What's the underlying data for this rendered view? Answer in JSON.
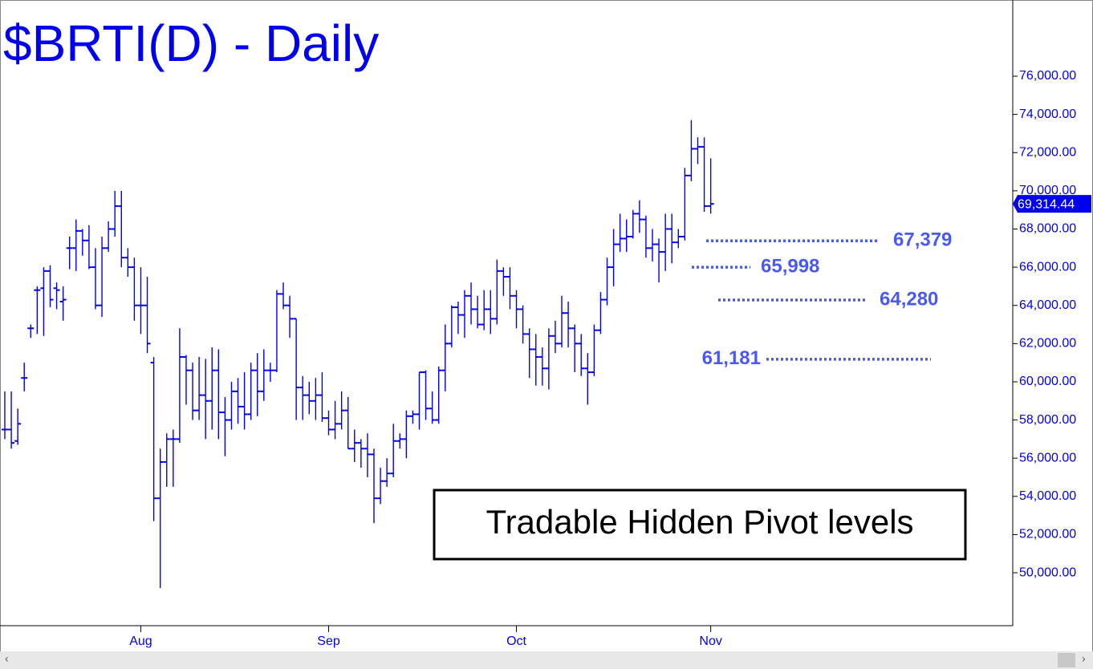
{
  "chart_data": {
    "type": "ohlc",
    "title": "$BRTI(D) - Daily",
    "annotation": "Tradable Hidden Pivot levels",
    "color": "#0000ee",
    "categories": [
      null,
      null,
      null,
      null,
      null,
      null,
      null,
      null,
      null,
      null,
      null,
      null,
      null,
      null,
      null,
      null,
      null,
      null,
      null,
      null,
      null,
      "Aug",
      null,
      null,
      null,
      null,
      null,
      null,
      null,
      null,
      null,
      null,
      null,
      null,
      null,
      null,
      null,
      null,
      null,
      null,
      null,
      null,
      null,
      null,
      null,
      null,
      null,
      null,
      null,
      null,
      "Sep",
      null,
      null,
      null,
      null,
      null,
      null,
      null,
      null,
      null,
      null,
      null,
      null,
      null,
      null,
      null,
      null,
      null,
      null,
      null,
      null,
      null,
      null,
      null,
      null,
      null,
      null,
      null,
      null,
      "Oct",
      null,
      null,
      null,
      null,
      null,
      null,
      null,
      null,
      null,
      null,
      null,
      null,
      null,
      null,
      null,
      null,
      null,
      null,
      null,
      null,
      null,
      null,
      null,
      null,
      null,
      null,
      null,
      null,
      null,
      "Nov"
    ],
    "open": [
      57500,
      57500,
      56900,
      60200,
      62800,
      64800,
      64900,
      65800,
      64900,
      64200,
      67000,
      67000,
      67900,
      67400,
      66000,
      64000,
      67000,
      68000,
      69200,
      66500,
      66000,
      64000,
      64000,
      61000,
      53900,
      55800,
      57000,
      57000,
      61300,
      60600,
      58500,
      59300,
      59000,
      60600,
      58400,
      58000,
      59500,
      58700,
      58300,
      60600,
      59500,
      60600,
      60600,
      64600,
      64000,
      63300,
      59700,
      59300,
      59000,
      59300,
      58100,
      57500,
      57800,
      58500,
      56500,
      56800,
      56500,
      56200,
      53900,
      54800,
      55200,
      56900,
      57000,
      58200,
      58300,
      60500,
      58600,
      58000,
      60600,
      62000,
      63900,
      63500,
      64500,
      63800,
      63000,
      63800,
      63300,
      65800,
      65500,
      64500,
      63800,
      62500,
      61700,
      61300,
      60700,
      62400,
      62000,
      63600,
      62800,
      62000,
      60700,
      60500,
      62700,
      64300,
      66000,
      67200,
      67500,
      67600,
      68800,
      68500,
      67000,
      67200,
      66800,
      68000,
      67300,
      67600,
      70800,
      72200,
      72300,
      69200
    ],
    "high": [
      59500,
      59500,
      58600,
      61000,
      63000,
      65000,
      66000,
      66100,
      65200,
      65000,
      67600,
      68500,
      68000,
      68200,
      67000,
      67600,
      68400,
      70000,
      70000,
      67000,
      66500,
      66000,
      65500,
      61300,
      56500,
      57300,
      57500,
      62800,
      61400,
      61000,
      61300,
      61200,
      61800,
      61700,
      59200,
      60000,
      60200,
      60500,
      61000,
      61500,
      61700,
      61000,
      64800,
      65200,
      64500,
      63300,
      60300,
      60000,
      60200,
      60500,
      58500,
      59000,
      59500,
      59200,
      57500,
      57000,
      57300,
      56500,
      55500,
      56000,
      57800,
      57300,
      58500,
      58500,
      60500,
      60600,
      59500,
      60800,
      63000,
      64000,
      64200,
      64800,
      65200,
      64500,
      64800,
      64800,
      66400,
      66000,
      66000,
      64800,
      64000,
      62800,
      62500,
      61800,
      62800,
      63200,
      64500,
      64200,
      63000,
      62500,
      61500,
      63000,
      64700,
      66500,
      68000,
      68800,
      68500,
      69000,
      69500,
      68700,
      68000,
      67500,
      68800,
      68800,
      68000,
      71200,
      73700,
      72800,
      72800,
      71700
    ],
    "low": [
      57000,
      56500,
      56700,
      59500,
      62300,
      62500,
      62400,
      63900,
      63800,
      63200,
      65900,
      65800,
      66600,
      65900,
      63800,
      63400,
      66800,
      67600,
      66000,
      65500,
      63200,
      62500,
      61500,
      52700,
      49200,
      54500,
      54500,
      56800,
      58800,
      58000,
      58000,
      57000,
      57500,
      57000,
      56100,
      57500,
      57800,
      57500,
      58000,
      58200,
      59000,
      60000,
      60500,
      63800,
      62300,
      58000,
      58000,
      58300,
      58000,
      57900,
      57200,
      57000,
      57500,
      56500,
      55800,
      55500,
      55000,
      52600,
      53600,
      54500,
      55000,
      56500,
      56000,
      57800,
      57500,
      58000,
      57800,
      57800,
      59500,
      61800,
      62500,
      62300,
      63000,
      62800,
      62700,
      62500,
      63000,
      64500,
      63800,
      62800,
      62000,
      60200,
      59800,
      59800,
      59600,
      61500,
      61800,
      61800,
      60500,
      60300,
      58800,
      60300,
      62500,
      64000,
      65000,
      66800,
      66800,
      67500,
      67800,
      66500,
      66300,
      65200,
      65800,
      66200,
      67000,
      67400,
      70500,
      71400,
      68900,
      68800
    ],
    "close": [
      57500,
      56800,
      57800,
      60200,
      62800,
      64800,
      65800,
      64300,
      64800,
      64300,
      67000,
      67900,
      67400,
      66000,
      64000,
      67000,
      68000,
      69200,
      66500,
      66000,
      64000,
      64000,
      62000,
      53900,
      55800,
      57000,
      57000,
      61300,
      60600,
      58500,
      59300,
      59000,
      60600,
      58400,
      58000,
      59500,
      58700,
      58300,
      60600,
      59500,
      60600,
      60600,
      64600,
      64000,
      63300,
      59700,
      59300,
      59000,
      59300,
      58100,
      57500,
      57800,
      58500,
      56500,
      56800,
      56500,
      56200,
      53900,
      54800,
      55200,
      56900,
      57000,
      58200,
      58300,
      60500,
      58600,
      58000,
      60600,
      62000,
      63900,
      63500,
      64500,
      63800,
      63000,
      63800,
      63300,
      65800,
      65500,
      64500,
      63800,
      62500,
      61700,
      61300,
      60700,
      62400,
      62000,
      63600,
      62800,
      62000,
      60700,
      60500,
      62700,
      64300,
      66000,
      67200,
      67500,
      67600,
      68800,
      68500,
      67000,
      67200,
      66800,
      68000,
      67300,
      67600,
      70800,
      72200,
      72300,
      69200,
      69314.44
    ],
    "last": {
      "value": 69314.44,
      "label": "69,314.44"
    },
    "levels": {
      "color": "#4a5af0",
      "values": [
        67379,
        65998,
        64280,
        61181
      ],
      "value_labels": [
        "67,379",
        "65,998",
        "64,280",
        "61,181"
      ]
    },
    "ylim": [
      47230,
      79990
    ],
    "yticks": [
      {
        "value": 50000,
        "label": "50,000.00"
      },
      {
        "value": 52000,
        "label": "52,000.00"
      },
      {
        "value": 54000,
        "label": "54,000.00"
      },
      {
        "value": 56000,
        "label": "56,000.00"
      },
      {
        "value": 58000,
        "label": "58,000.00"
      },
      {
        "value": 60000,
        "label": "60,000.00"
      },
      {
        "value": 62000,
        "label": "62,000.00"
      },
      {
        "value": 64000,
        "label": "64,000.00"
      },
      {
        "value": 66000,
        "label": "66,000.00"
      },
      {
        "value": 68000,
        "label": "68,000.00"
      },
      {
        "value": 70000,
        "label": "70,000.00"
      },
      {
        "value": 72000,
        "label": "72,000.00"
      },
      {
        "value": 74000,
        "label": "74,000.00"
      },
      {
        "value": 76000,
        "label": "76,000.00"
      }
    ]
  }
}
